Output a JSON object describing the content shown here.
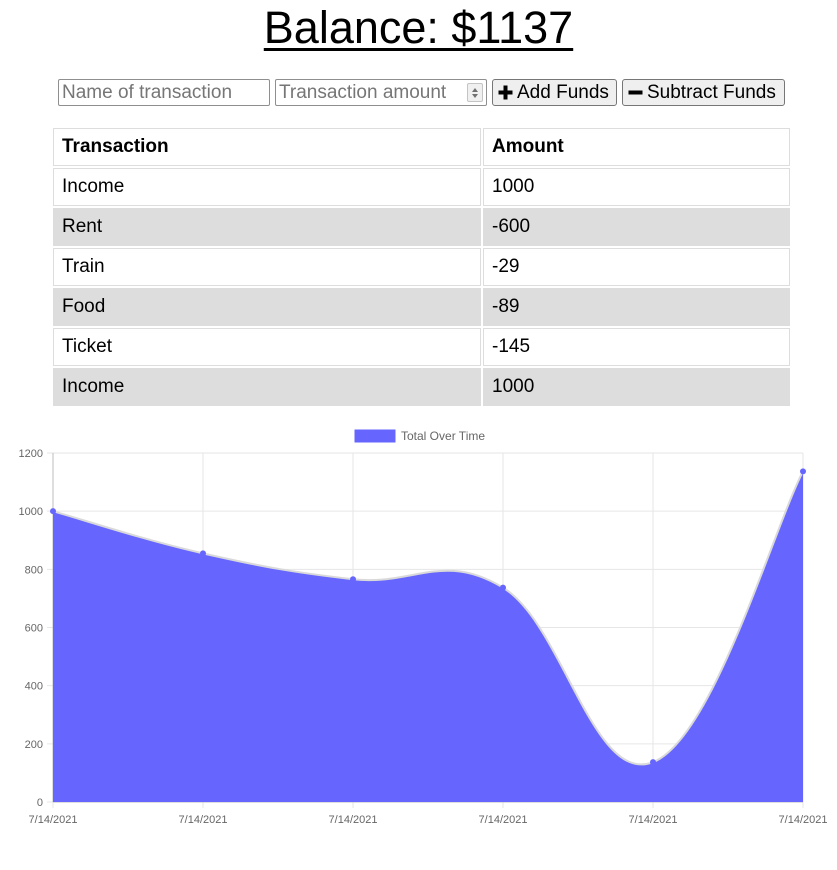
{
  "header": {
    "balance_text": "Balance: $1137"
  },
  "form": {
    "name_placeholder": "Name of transaction",
    "amount_placeholder": "Transaction amount",
    "add_label": "Add Funds",
    "subtract_label": "Subtract Funds"
  },
  "table": {
    "headers": [
      "Transaction",
      "Amount"
    ],
    "rows": [
      {
        "name": "Income",
        "amount": "1000"
      },
      {
        "name": "Rent",
        "amount": "-600"
      },
      {
        "name": "Train",
        "amount": "-29"
      },
      {
        "name": "Food",
        "amount": "-89"
      },
      {
        "name": "Ticket",
        "amount": "-145"
      },
      {
        "name": "Income",
        "amount": "1000"
      }
    ]
  },
  "colors": {
    "series_fill": "#6666ff",
    "grid": "#e6e6e6",
    "row_stripe": "#dddddd"
  },
  "chart_data": {
    "type": "area",
    "title": "",
    "xlabel": "",
    "ylabel": "",
    "x": [
      "7/14/2021",
      "7/14/2021",
      "7/14/2021",
      "7/14/2021",
      "7/14/2021",
      "7/14/2021"
    ],
    "series": [
      {
        "name": "Total Over Time",
        "values": [
          1000,
          855,
          766,
          737,
          137,
          1137
        ]
      }
    ],
    "ylim": [
      0,
      1200
    ],
    "yticks": [
      0,
      200,
      400,
      600,
      800,
      1000,
      1200
    ],
    "grid": true,
    "legend": "top-center"
  }
}
